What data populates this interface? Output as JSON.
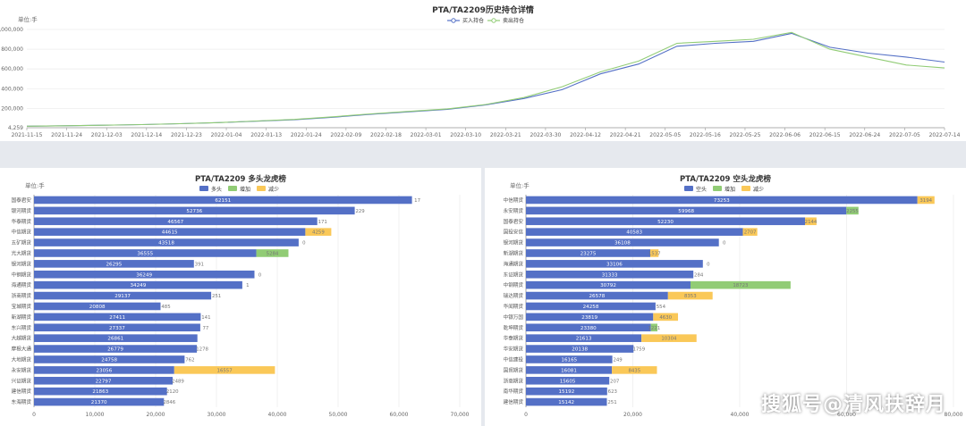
{
  "watermark": "搜狐号@清风扶辞月",
  "chart_data": [
    {
      "type": "line",
      "title": "PTA/TA2209历史持仓详情",
      "ylabel": "单位:手",
      "ylim": [
        4259,
        1000000
      ],
      "yticks": [
        "4,259",
        "200,000",
        "400,000",
        "600,000",
        "800,000",
        "1,000,000"
      ],
      "ytick_values": [
        4259,
        200000,
        400000,
        600000,
        800000,
        1000000
      ],
      "xticks": [
        "2021-11-15",
        "2021-11-24",
        "2021-12-03",
        "2021-12-14",
        "2021-12-23",
        "2022-01-04",
        "2022-01-13",
        "2022-01-24",
        "2022-02-09",
        "2022-02-18",
        "2022-03-01",
        "2022-03-10",
        "2022-03-21",
        "2022-03-30",
        "2022-04-12",
        "2022-04-21",
        "2022-05-05",
        "2022-05-16",
        "2022-05-25",
        "2022-06-06",
        "2022-06-15",
        "2022-06-24",
        "2022-07-05",
        "2022-07-14"
      ],
      "legend": "top-center",
      "series": [
        {
          "name": "买入持仓",
          "color": "#5470c6",
          "values": [
            20000,
            24000,
            30000,
            36000,
            45000,
            56000,
            70000,
            85000,
            110000,
            140000,
            165000,
            190000,
            235000,
            300000,
            390000,
            550000,
            650000,
            830000,
            860000,
            880000,
            960000,
            820000,
            760000,
            720000,
            670000
          ]
        },
        {
          "name": "卖出持仓",
          "color": "#91cc75",
          "values": [
            20000,
            24000,
            30000,
            36000,
            45000,
            56000,
            72000,
            88000,
            115000,
            145000,
            170000,
            195000,
            240000,
            310000,
            420000,
            570000,
            680000,
            860000,
            880000,
            900000,
            970000,
            800000,
            720000,
            640000,
            610000
          ]
        }
      ]
    },
    {
      "type": "bar",
      "title": "PTA/TA2209 多头龙虎榜",
      "ylabel": "单位:手",
      "xlim": [
        0,
        70000
      ],
      "xticks": [
        0,
        10000,
        20000,
        30000,
        40000,
        50000,
        60000,
        70000
      ],
      "xtick_labels": [
        "0",
        "10,000",
        "20,000",
        "30,000",
        "40,000",
        "50,000",
        "60,000",
        "70,000"
      ],
      "legend": [
        "多头",
        "增加",
        "减少"
      ],
      "colors": [
        "#5470c6",
        "#91cc75",
        "#fac858"
      ],
      "categories": [
        "国泰君安",
        "银河期货",
        "华泰期货",
        "中信期货",
        "五矿期货",
        "光大期货",
        "银河期货",
        "中钢期货",
        "海通期货",
        "浙商期货",
        "宝城期货",
        "新湖期货",
        "东兴期货",
        "大越期货",
        "摩根大通",
        "大地期货",
        "永安期货",
        "兴证期货",
        "建信期货",
        "东海期货"
      ],
      "values": [
        62151,
        52736,
        46567,
        44615,
        43518,
        36555,
        26295,
        36249,
        34249,
        29137,
        20808,
        27411,
        27337,
        26861,
        26779,
        24758,
        23056,
        22797,
        21863,
        21370
      ],
      "increase": [
        0,
        0,
        0,
        0,
        0,
        5284,
        0,
        0,
        0,
        0,
        0,
        0,
        0,
        0,
        0,
        0,
        0,
        0,
        0,
        0
      ],
      "decrease": [
        0,
        0,
        0,
        4259,
        0,
        0,
        0,
        0,
        0,
        0,
        0,
        0,
        0,
        0,
        0,
        0,
        16557,
        0,
        0,
        0
      ],
      "labels": [
        "62151",
        "52736",
        "46567",
        "44615",
        "43518",
        "36555",
        "26295",
        "36249",
        "34249",
        "29137",
        "20808",
        "27411",
        "27337",
        "26861",
        "26779",
        "24758",
        "23056",
        "22797",
        "21863",
        "21370"
      ],
      "change_labels": [
        "17",
        "229",
        "171",
        "4259",
        "0",
        "5284",
        "391",
        "0",
        "1",
        "251",
        "485",
        "141",
        "77",
        "",
        "1278",
        "762",
        "16557",
        "2489",
        "2120",
        "2846"
      ]
    },
    {
      "type": "bar",
      "title": "PTA/TA2209 空头龙虎榜",
      "ylabel": "单位:手",
      "xlim": [
        0,
        80000
      ],
      "xticks": [
        0,
        20000,
        40000,
        60000,
        80000
      ],
      "xtick_labels": [
        "0",
        "20,000",
        "40,000",
        "60,000",
        "80,000"
      ],
      "legend": [
        "空头",
        "增加",
        "减少"
      ],
      "colors": [
        "#5470c6",
        "#91cc75",
        "#fac858"
      ],
      "categories": [
        "中信期货",
        "永安期货",
        "国泰君安",
        "国投安信",
        "银河期货",
        "新湖期货",
        "海通期货",
        "东证期货",
        "中钢期货",
        "瑞达期货",
        "华闻期货",
        "中银万国",
        "乾坤期货",
        "华泰期货",
        "华安期货",
        "中信建投",
        "国贸期货",
        "浙商期货",
        "南华期货",
        "建信期货"
      ],
      "values": [
        73253,
        59968,
        52230,
        40583,
        36108,
        23275,
        33106,
        31333,
        30792,
        26578,
        24258,
        23819,
        23380,
        21613,
        20138,
        16165,
        16081,
        15605,
        15192,
        15142
      ],
      "increase": [
        0,
        2255,
        0,
        0,
        0,
        0,
        0,
        0,
        18723,
        0,
        0,
        0,
        1221,
        0,
        0,
        0,
        0,
        0,
        0,
        0
      ],
      "decrease": [
        3194,
        0,
        2144,
        2707,
        0,
        1537,
        0,
        0,
        0,
        8353,
        0,
        4630,
        0,
        10304,
        0,
        0,
        8435,
        0,
        0,
        0
      ],
      "labels": [
        "73253",
        "59968",
        "52230",
        "40583",
        "36108",
        "23275",
        "33106",
        "31333",
        "30792",
        "26578",
        "24258",
        "23819",
        "23380",
        "21613",
        "20138",
        "16165",
        "16081",
        "15605",
        "15192",
        "15142"
      ],
      "change_labels": [
        "3194",
        "2255",
        "2144",
        "2707",
        "0",
        "1537",
        "0",
        "284",
        "18723",
        "8353",
        "554",
        "4630",
        "1221",
        "10304",
        "1759",
        "249",
        "8435",
        "207",
        "623",
        "251"
      ]
    }
  ]
}
